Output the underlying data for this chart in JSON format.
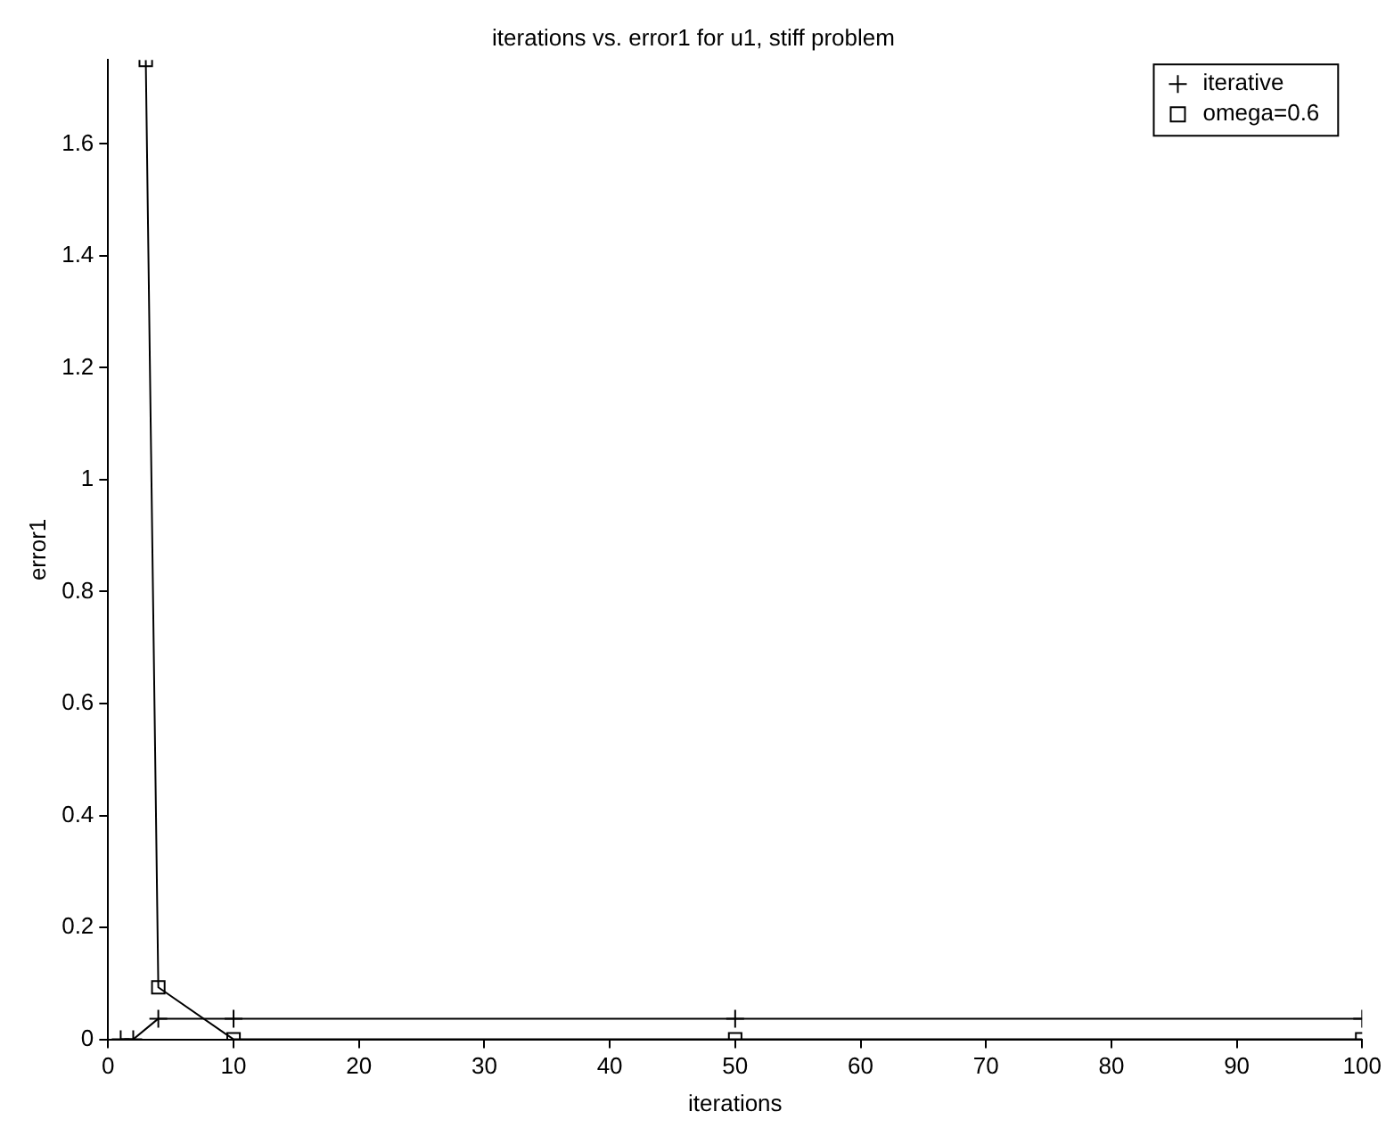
{
  "chart_data": {
    "type": "line",
    "title": "iterations vs. error1 for u1, stiff problem",
    "xlabel": "iterations",
    "ylabel": "error1",
    "xlim": [
      0,
      100
    ],
    "xticks": [
      0,
      10,
      20,
      30,
      40,
      50,
      60,
      70,
      80,
      90,
      100
    ],
    "ylim": [
      0,
      1.75
    ],
    "yticks": [
      0,
      0.2,
      0.4,
      0.6,
      0.8,
      1,
      1.2,
      1.4,
      1.6
    ],
    "grid": false,
    "legend": "top right",
    "line_style": "solid",
    "series": [
      {
        "name": "iterative",
        "color": "#000000",
        "marker": "cross",
        "x": [
          1,
          2,
          4,
          10,
          50,
          100
        ],
        "values": [
          0,
          0,
          0.037,
          0.037,
          0.037,
          0.037
        ]
      },
      {
        "name": "omega=0.6",
        "color": "#000000",
        "marker": "square",
        "x": [
          3,
          4,
          10,
          50,
          100
        ],
        "values": [
          1.75,
          0.093,
          0,
          0,
          0
        ]
      }
    ]
  }
}
